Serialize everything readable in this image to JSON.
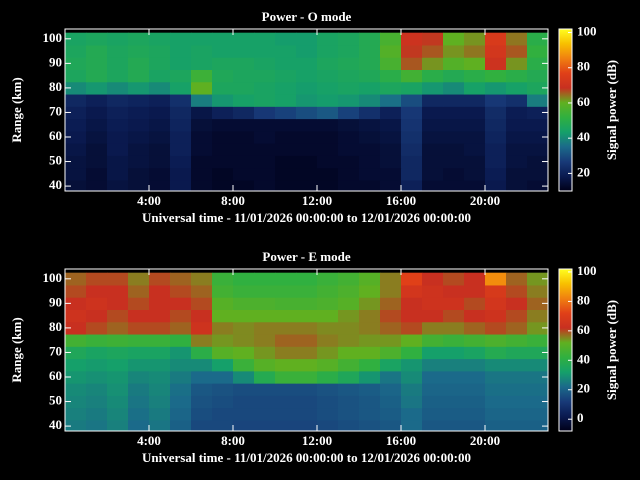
{
  "chart_data": [
    {
      "type": "heatmap",
      "title": "Power - O mode",
      "xlabel": "Universal time - 11/01/2026 00:00:00 to 12/01/2026 00:00:00",
      "ylabel": "Range (km)",
      "colorbar_label": "Signal power (dB)",
      "x": [
        0.5,
        1.5,
        2.5,
        3.5,
        4.5,
        5.5,
        6.5,
        7.5,
        8.5,
        9.5,
        10.5,
        11.5,
        12.5,
        13.5,
        14.5,
        15.5,
        16.5,
        17.5,
        18.5,
        19.5,
        20.5,
        21.5,
        22.5
      ],
      "y": [
        40,
        45,
        50,
        55,
        60,
        65,
        70,
        75,
        80,
        85,
        90,
        95,
        100
      ],
      "z": [
        [
          15,
          14,
          16,
          15,
          14,
          18,
          13,
          12,
          12,
          13,
          12,
          12,
          12,
          13,
          13,
          14,
          20,
          14,
          14,
          14,
          18,
          15,
          14
        ],
        [
          16,
          14,
          17,
          15,
          14,
          18,
          13,
          12,
          13,
          13,
          12,
          12,
          12,
          13,
          14,
          14,
          22,
          15,
          14,
          15,
          19,
          15,
          15
        ],
        [
          16,
          15,
          17,
          16,
          15,
          19,
          13,
          13,
          13,
          13,
          12,
          12,
          13,
          13,
          14,
          15,
          22,
          15,
          15,
          15,
          20,
          16,
          15
        ],
        [
          17,
          15,
          18,
          16,
          15,
          20,
          14,
          13,
          13,
          13,
          13,
          13,
          13,
          14,
          14,
          15,
          23,
          15,
          15,
          16,
          20,
          16,
          16
        ],
        [
          18,
          16,
          18,
          17,
          16,
          20,
          14,
          13,
          13,
          14,
          13,
          13,
          13,
          14,
          15,
          16,
          24,
          16,
          16,
          16,
          21,
          17,
          17
        ],
        [
          19,
          17,
          19,
          18,
          17,
          21,
          15,
          14,
          14,
          14,
          14,
          14,
          14,
          15,
          16,
          17,
          25,
          17,
          17,
          17,
          22,
          18,
          18
        ],
        [
          20,
          18,
          20,
          19,
          18,
          22,
          17,
          20,
          22,
          26,
          28,
          30,
          32,
          28,
          24,
          20,
          26,
          18,
          18,
          18,
          23,
          19,
          20
        ],
        [
          22,
          20,
          22,
          21,
          20,
          24,
          38,
          42,
          44,
          45,
          44,
          42,
          43,
          42,
          40,
          36,
          30,
          22,
          22,
          22,
          26,
          24,
          38
        ],
        [
          40,
          42,
          40,
          42,
          40,
          44,
          60,
          46,
          46,
          45,
          44,
          43,
          44,
          45,
          44,
          46,
          45,
          42,
          40,
          44,
          42,
          44,
          46
        ],
        [
          46,
          48,
          46,
          48,
          45,
          46,
          54,
          47,
          46,
          46,
          45,
          44,
          45,
          46,
          47,
          50,
          55,
          50,
          48,
          50,
          52,
          50,
          48
        ],
        [
          47,
          48,
          46,
          48,
          46,
          44,
          45,
          46,
          46,
          45,
          44,
          44,
          46,
          47,
          48,
          56,
          66,
          62,
          58,
          60,
          70,
          62,
          50
        ],
        [
          46,
          48,
          46,
          47,
          46,
          44,
          45,
          44,
          44,
          44,
          44,
          43,
          45,
          46,
          48,
          58,
          68,
          66,
          62,
          64,
          72,
          66,
          52
        ],
        [
          45,
          46,
          45,
          46,
          45,
          44,
          44,
          44,
          44,
          44,
          43,
          43,
          45,
          46,
          48,
          56,
          70,
          68,
          60,
          62,
          74,
          64,
          50
        ]
      ],
      "xlim": [
        0,
        23
      ],
      "ylim": [
        38,
        104
      ],
      "xticks": [
        {
          "value": 4,
          "label": "4:00"
        },
        {
          "value": 8,
          "label": "8:00"
        },
        {
          "value": 12,
          "label": "12:00"
        },
        {
          "value": 16,
          "label": "16:00"
        },
        {
          "value": 20,
          "label": "20:00"
        }
      ],
      "yticks": [
        40,
        50,
        60,
        70,
        80,
        90,
        100
      ],
      "clim": [
        10,
        102
      ],
      "cticks": [
        20,
        40,
        60,
        80,
        100
      ],
      "colorscale": [
        "#000018",
        "#0a1a50",
        "#183a78",
        "#1b6a8a",
        "#15a06a",
        "#30b040",
        "#60b020",
        "#c83020",
        "#e04018",
        "#f08010",
        "#f8c000",
        "#ffff20"
      ]
    },
    {
      "type": "heatmap",
      "title": "Power - E mode",
      "xlabel": "Universal time - 11/01/2026 00:00:00 to 12/01/2026 00:00:00",
      "ylabel": "Range (km)",
      "colorbar_label": "Signal power (dB)",
      "x": [
        0.5,
        1.5,
        2.5,
        3.5,
        4.5,
        5.5,
        6.5,
        7.5,
        8.5,
        9.5,
        10.5,
        11.5,
        12.5,
        13.5,
        14.5,
        15.5,
        16.5,
        17.5,
        18.5,
        19.5,
        20.5,
        21.5,
        22.5
      ],
      "y": [
        40,
        45,
        50,
        55,
        60,
        65,
        70,
        75,
        80,
        85,
        90,
        95,
        100
      ],
      "z": [
        [
          25,
          24,
          26,
          22,
          24,
          20,
          15,
          15,
          14,
          14,
          14,
          14,
          15,
          16,
          17,
          18,
          22,
          18,
          18,
          18,
          20,
          20,
          20
        ],
        [
          26,
          25,
          27,
          23,
          25,
          21,
          16,
          15,
          15,
          15,
          15,
          15,
          16,
          17,
          18,
          19,
          22,
          19,
          19,
          19,
          21,
          21,
          21
        ],
        [
          27,
          26,
          28,
          24,
          26,
          22,
          17,
          16,
          15,
          15,
          15,
          15,
          16,
          17,
          18,
          20,
          24,
          20,
          20,
          20,
          22,
          22,
          22
        ],
        [
          28,
          27,
          29,
          25,
          27,
          23,
          18,
          17,
          16,
          16,
          16,
          16,
          17,
          18,
          19,
          21,
          25,
          21,
          21,
          21,
          23,
          23,
          23
        ],
        [
          30,
          29,
          30,
          27,
          28,
          25,
          22,
          22,
          28,
          38,
          44,
          44,
          40,
          36,
          30,
          24,
          28,
          22,
          22,
          22,
          24,
          24,
          24
        ],
        [
          32,
          31,
          32,
          30,
          30,
          28,
          28,
          32,
          44,
          50,
          52,
          52,
          50,
          46,
          42,
          34,
          30,
          26,
          26,
          26,
          28,
          28,
          28
        ],
        [
          36,
          34,
          35,
          34,
          34,
          30,
          40,
          50,
          52,
          54,
          56,
          56,
          54,
          52,
          52,
          48,
          42,
          32,
          32,
          34,
          38,
          36,
          36
        ],
        [
          46,
          44,
          45,
          44,
          44,
          42,
          56,
          54,
          55,
          56,
          58,
          58,
          56,
          55,
          54,
          54,
          52,
          46,
          44,
          46,
          48,
          46,
          44
        ],
        [
          62,
          60,
          58,
          60,
          60,
          58,
          64,
          56,
          55,
          56,
          56,
          56,
          55,
          55,
          56,
          58,
          60,
          56,
          56,
          58,
          60,
          58,
          54
        ],
        [
          64,
          62,
          60,
          62,
          62,
          60,
          62,
          52,
          52,
          52,
          52,
          52,
          52,
          54,
          56,
          60,
          62,
          62,
          60,
          62,
          64,
          60,
          56
        ],
        [
          62,
          64,
          62,
          60,
          62,
          62,
          60,
          50,
          48,
          48,
          47,
          47,
          48,
          50,
          54,
          58,
          62,
          64,
          64,
          60,
          66,
          62,
          58
        ],
        [
          60,
          62,
          62,
          58,
          62,
          60,
          58,
          46,
          44,
          44,
          44,
          44,
          46,
          48,
          52,
          56,
          66,
          64,
          62,
          62,
          68,
          60,
          56
        ],
        [
          58,
          60,
          60,
          56,
          60,
          58,
          56,
          44,
          42,
          42,
          42,
          42,
          44,
          46,
          50,
          56,
          72,
          62,
          60,
          62,
          84,
          58,
          54
        ]
      ],
      "xlim": [
        0,
        23
      ],
      "ylim": [
        38,
        104
      ],
      "xticks": [
        {
          "value": 4,
          "label": "4:00"
        },
        {
          "value": 8,
          "label": "8:00"
        },
        {
          "value": 12,
          "label": "12:00"
        },
        {
          "value": 16,
          "label": "16:00"
        },
        {
          "value": 20,
          "label": "20:00"
        }
      ],
      "yticks": [
        40,
        50,
        60,
        70,
        80,
        90,
        100
      ],
      "clim": [
        -8,
        102
      ],
      "cticks": [
        0,
        20,
        40,
        60,
        80,
        100
      ],
      "colorscale": [
        "#000018",
        "#0a1a50",
        "#183a78",
        "#1b6a8a",
        "#15a06a",
        "#30b040",
        "#60b020",
        "#c83020",
        "#e04018",
        "#f08010",
        "#f8c000",
        "#ffff20"
      ]
    }
  ]
}
